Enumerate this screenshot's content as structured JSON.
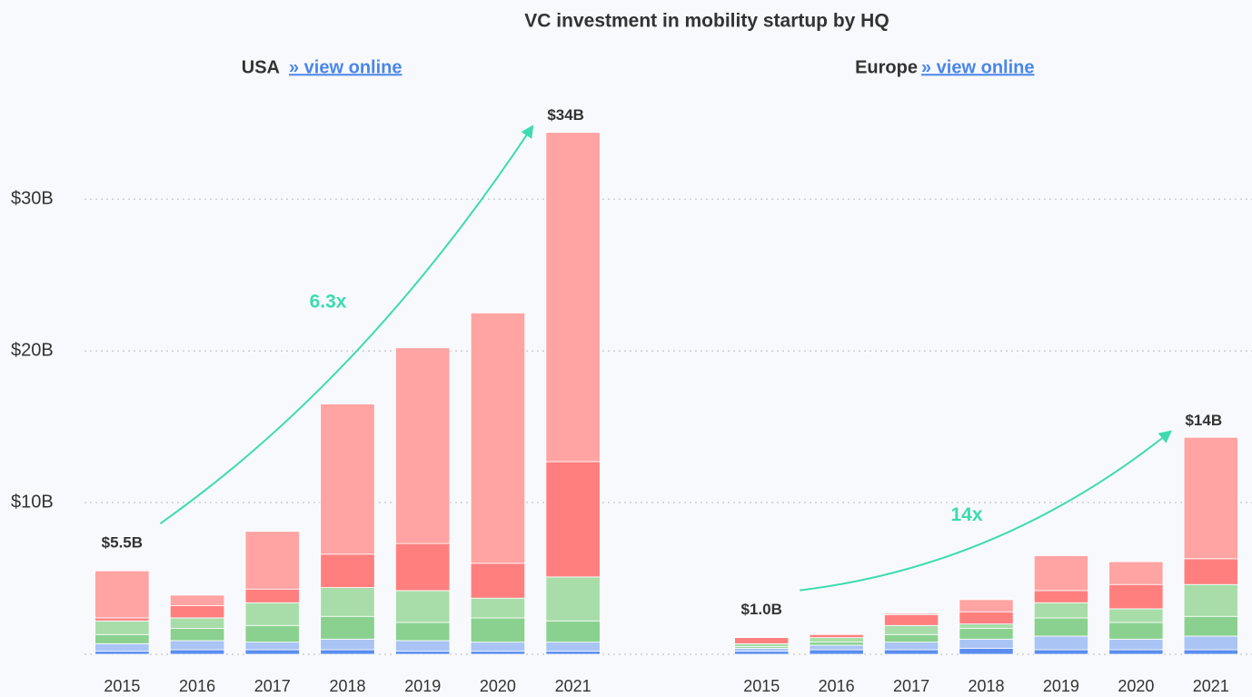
{
  "title": "VC investment in mobility startup by HQ",
  "chart_data": [
    {
      "type": "bar",
      "stacked": true,
      "subtitle": "USA",
      "link": "» view online",
      "categories": [
        "2015",
        "2016",
        "2017",
        "2018",
        "2019",
        "2020",
        "2021"
      ],
      "series": [
        {
          "color": "#5b8def",
          "values": [
            0.2,
            0.3,
            0.3,
            0.3,
            0.2,
            0.2,
            0.2
          ]
        },
        {
          "color": "#a9c4f5",
          "values": [
            0.5,
            0.6,
            0.5,
            0.7,
            0.7,
            0.6,
            0.6
          ]
        },
        {
          "color": "#8ad18f",
          "values": [
            0.6,
            0.8,
            1.1,
            1.5,
            1.2,
            1.6,
            1.4
          ]
        },
        {
          "color": "#a8dda9",
          "values": [
            0.9,
            0.7,
            1.5,
            1.9,
            2.1,
            1.3,
            2.9
          ]
        },
        {
          "color": "#ff7f7f",
          "values": [
            0.2,
            0.8,
            0.9,
            2.2,
            3.1,
            2.3,
            7.6
          ]
        },
        {
          "color": "#ffa3a3",
          "values": [
            3.1,
            0.7,
            3.8,
            9.9,
            12.9,
            16.5,
            21.7
          ]
        }
      ],
      "ylim": [
        0,
        36
      ],
      "yticks": [
        {
          "value": 10,
          "label": "$10B"
        },
        {
          "value": 20,
          "label": "$20B"
        },
        {
          "value": 30,
          "label": "$30B"
        }
      ],
      "grid": true,
      "start_label": "$5.5B",
      "end_label": "$34B",
      "growth_label": "6.3x"
    },
    {
      "type": "bar",
      "stacked": true,
      "subtitle": "Europe",
      "link": "» view online",
      "categories": [
        "2015",
        "2016",
        "2017",
        "2018",
        "2019",
        "2020",
        "2021"
      ],
      "series": [
        {
          "color": "#5b8def",
          "values": [
            0.2,
            0.3,
            0.3,
            0.4,
            0.3,
            0.3,
            0.3
          ]
        },
        {
          "color": "#a9c4f5",
          "values": [
            0.2,
            0.3,
            0.5,
            0.6,
            0.9,
            0.7,
            0.9
          ]
        },
        {
          "color": "#8ad18f",
          "values": [
            0.1,
            0.2,
            0.5,
            0.7,
            1.2,
            1.1,
            1.3
          ]
        },
        {
          "color": "#a8dda9",
          "values": [
            0.2,
            0.3,
            0.6,
            0.3,
            1.0,
            0.9,
            2.1
          ]
        },
        {
          "color": "#ff7f7f",
          "values": [
            0.4,
            0.2,
            0.7,
            0.8,
            0.8,
            1.6,
            1.7
          ]
        },
        {
          "color": "#ffa3a3",
          "values": [
            0,
            0,
            0.1,
            0.8,
            2.3,
            1.5,
            8.0
          ]
        }
      ],
      "ylim": [
        0,
        36
      ],
      "grid": true,
      "start_label": "$1.0B",
      "end_label": "$14B",
      "growth_label": "14x"
    }
  ]
}
